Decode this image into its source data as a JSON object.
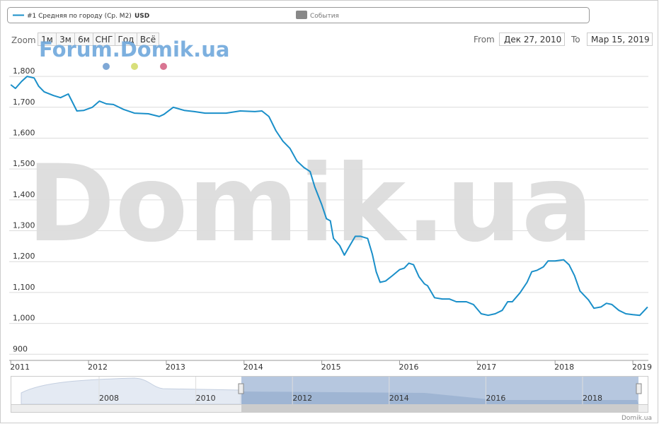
{
  "chart_data": {
    "type": "line",
    "legend": {
      "series_unit": "USD",
      "events": "События"
    },
    "zoom": {
      "label": "Zoom",
      "buttons": [
        "1м",
        "3м",
        "6м",
        "СНГ",
        "Год",
        "Всё"
      ]
    },
    "range": {
      "from_label": "From",
      "from": "Дек 27, 2010",
      "to_label": "To",
      "to": "Мар 15, 2019"
    },
    "brand": "Forum.Domik.ua",
    "watermark": "Domik.ua",
    "credit": "Domik.ua",
    "navigator": {
      "labels": [
        "2008",
        "2010",
        "2012",
        "2014",
        "2016",
        "2018"
      ]
    },
    "xlim": [
      2010.98,
      2019.2
    ],
    "xticks": [
      2011,
      2012,
      2013,
      2014,
      2015,
      2016,
      2017,
      2018,
      2019
    ],
    "ylim": [
      880,
      1830
    ],
    "yticks": [
      900,
      {
        "value": 1000,
        "label": "1,000"
      },
      {
        "value": 1100,
        "label": "1,100"
      },
      {
        "value": 1200,
        "label": "1,200"
      },
      {
        "value": 1300,
        "label": "1,300"
      },
      {
        "value": 1400,
        "label": "1,400"
      },
      {
        "value": 1500,
        "label": "1,500"
      },
      {
        "value": 1600,
        "label": "1,600"
      },
      {
        "value": 1700,
        "label": "1,700"
      },
      {
        "value": 1800,
        "label": "1,800"
      }
    ],
    "grid": true,
    "x": [
      2011.0,
      2011.06,
      2011.14,
      2011.21,
      2011.3,
      2011.36,
      2011.43,
      2011.55,
      2011.64,
      2011.74,
      2011.85,
      2011.94,
      2012.05,
      2012.14,
      2012.23,
      2012.32,
      2012.45,
      2012.59,
      2012.77,
      2012.91,
      2012.97,
      2013.09,
      2013.23,
      2013.36,
      2013.5,
      2013.64,
      2013.77,
      2013.95,
      2014.14,
      2014.23,
      2014.32,
      2014.41,
      2014.5,
      2014.59,
      2014.68,
      2014.77,
      2014.85,
      2014.91,
      2015.0,
      2015.06,
      2015.11,
      2015.15,
      2015.23,
      2015.29,
      2015.36,
      2015.43,
      2015.5,
      2015.59,
      2015.65,
      2015.7,
      2015.75,
      2015.82,
      2015.91,
      2016.0,
      2016.06,
      2016.12,
      2016.18,
      2016.25,
      2016.32,
      2016.36,
      2016.45,
      2016.55,
      2016.64,
      2016.73,
      2016.86,
      2016.95,
      2017.05,
      2017.14,
      2017.23,
      2017.32,
      2017.39,
      2017.45,
      2017.55,
      2017.64,
      2017.7,
      2017.77,
      2017.85,
      2017.91,
      2018.0,
      2018.11,
      2018.18,
      2018.25,
      2018.32,
      2018.43,
      2018.5,
      2018.59,
      2018.66,
      2018.73,
      2018.82,
      2018.91,
      2019.0,
      2019.09,
      2019.19
    ],
    "series": [
      {
        "name": "#1 Средняя по городу (Ср. М2)",
        "color": "#1a8fc9",
        "values": [
          1773,
          1761,
          1784,
          1800,
          1795,
          1768,
          1750,
          1738,
          1731,
          1743,
          1688,
          1690,
          1700,
          1720,
          1711,
          1709,
          1693,
          1681,
          1679,
          1670,
          1677,
          1700,
          1690,
          1686,
          1681,
          1681,
          1681,
          1688,
          1686,
          1688,
          1670,
          1624,
          1590,
          1567,
          1526,
          1505,
          1492,
          1442,
          1384,
          1339,
          1332,
          1275,
          1252,
          1221,
          1252,
          1282,
          1282,
          1275,
          1224,
          1167,
          1133,
          1137,
          1155,
          1174,
          1179,
          1195,
          1190,
          1151,
          1128,
          1122,
          1083,
          1079,
          1079,
          1070,
          1070,
          1061,
          1031,
          1026,
          1031,
          1042,
          1070,
          1070,
          1099,
          1133,
          1167,
          1172,
          1183,
          1202,
          1202,
          1206,
          1190,
          1155,
          1105,
          1076,
          1049,
          1053,
          1065,
          1061,
          1042,
          1031,
          1028,
          1026,
          1053
        ]
      }
    ]
  }
}
